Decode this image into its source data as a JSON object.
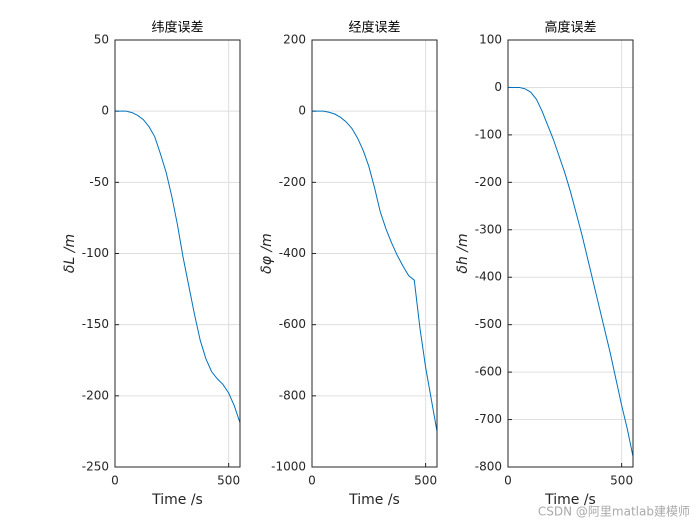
{
  "chart_data": [
    {
      "type": "line",
      "title": "纬度误差",
      "x_label": "Time /s",
      "y_label": "δL /m",
      "x": [
        0,
        25,
        50,
        75,
        100,
        125,
        150,
        175,
        200,
        225,
        250,
        275,
        300,
        325,
        350,
        375,
        400,
        425,
        450,
        475,
        500,
        525,
        550
      ],
      "values": [
        0,
        0,
        0,
        -1,
        -3,
        -6,
        -11,
        -18,
        -30,
        -43,
        -60,
        -80,
        -103,
        -123,
        -143,
        -161,
        -174,
        -183,
        -188,
        -192,
        -198,
        -207,
        -219
      ],
      "color": "#0072bd",
      "xlim": [
        0,
        550
      ],
      "xticks": [
        0,
        500
      ],
      "ylim": [
        -250,
        50
      ],
      "yticks": [
        -250,
        -200,
        -150,
        -100,
        -50,
        0,
        50
      ],
      "grid": true
    },
    {
      "type": "line",
      "title": "经度误差",
      "x_label": "Time /s",
      "y_label": "δφ /m",
      "x": [
        0,
        25,
        50,
        75,
        100,
        125,
        150,
        175,
        200,
        225,
        250,
        275,
        300,
        325,
        350,
        375,
        400,
        425,
        450,
        475,
        500,
        525,
        550
      ],
      "values": [
        0,
        0,
        0,
        -3,
        -8,
        -17,
        -30,
        -48,
        -75,
        -110,
        -155,
        -215,
        -282,
        -330,
        -370,
        -405,
        -435,
        -462,
        -475,
        -610,
        -720,
        -810,
        -900
      ],
      "color": "#0072bd",
      "xlim": [
        0,
        550
      ],
      "xticks": [
        0,
        500
      ],
      "ylim": [
        -1000,
        200
      ],
      "yticks": [
        -1000,
        -800,
        -600,
        -400,
        -200,
        0,
        200
      ],
      "grid": true
    },
    {
      "type": "line",
      "title": "高度误差",
      "x_label": "Time /s",
      "y_label": "δh /m",
      "x": [
        0,
        25,
        50,
        75,
        100,
        125,
        150,
        175,
        200,
        225,
        250,
        275,
        300,
        325,
        350,
        375,
        400,
        425,
        450,
        475,
        500,
        525,
        550
      ],
      "values": [
        0,
        0,
        0,
        -3,
        -10,
        -25,
        -50,
        -80,
        -110,
        -145,
        -180,
        -220,
        -265,
        -310,
        -360,
        -410,
        -460,
        -510,
        -560,
        -615,
        -670,
        -720,
        -778
      ],
      "color": "#0072bd",
      "xlim": [
        0,
        550
      ],
      "xticks": [
        0,
        500
      ],
      "ylim": [
        -800,
        100
      ],
      "yticks": [
        -800,
        -700,
        -600,
        -500,
        -400,
        -300,
        -200,
        -100,
        0,
        100
      ],
      "grid": true
    }
  ],
  "watermark": "CSDN @阿里matlab建模师"
}
